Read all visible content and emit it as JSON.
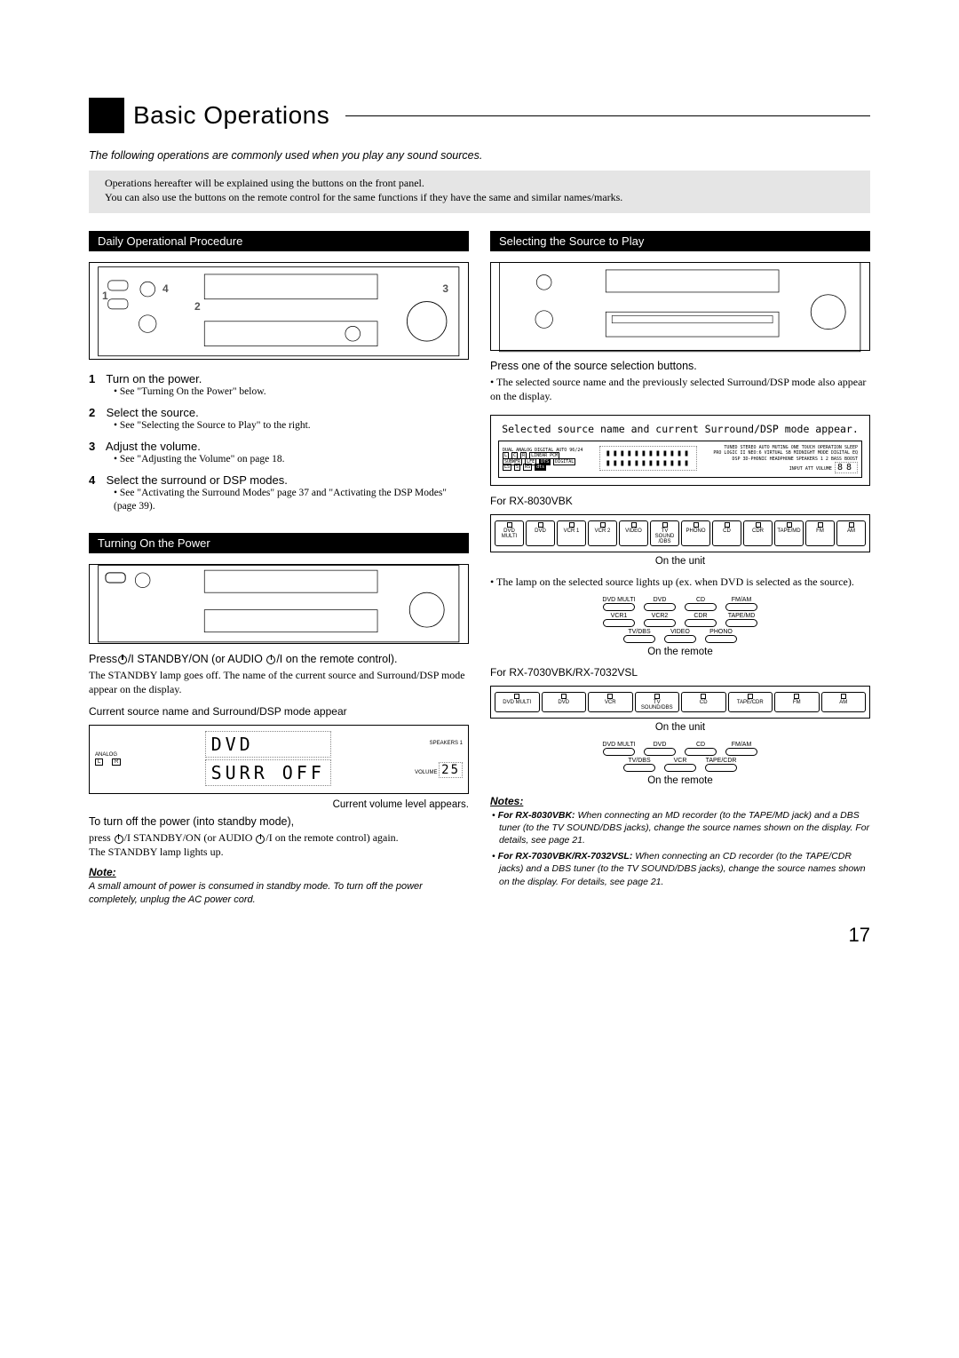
{
  "page_title": "Basic Operations",
  "intro_italic": "The following operations are commonly used when you play any sound sources.",
  "gray_box_line1": "Operations hereafter will be explained using the buttons on the front panel.",
  "gray_box_line2": "You can also use the buttons on the remote control for the same functions if they have the same and similar names/marks.",
  "left": {
    "section1": "Daily Operational Procedure",
    "callouts": {
      "c1": "1",
      "c2": "2",
      "c3": "3",
      "c4": "4"
    },
    "steps": [
      {
        "num": "1",
        "label": "Turn on the power.",
        "sub": "See \"Turning On the Power\" below."
      },
      {
        "num": "2",
        "label": "Select the source.",
        "sub": "See \"Selecting the Source to Play\" to the right."
      },
      {
        "num": "3",
        "label": "Adjust the volume.",
        "sub": "See \"Adjusting the Volume\" on page 18."
      },
      {
        "num": "4",
        "label": "Select the surround or DSP modes.",
        "sub": "See \"Activating the Surround Modes\" page 37 and \"Activating the DSP Modes\" (page 39)."
      }
    ],
    "section2": "Turning On the Power",
    "press_line_a": "Press",
    "press_line_b": " STANDBY/ON (or AUDIO ",
    "press_line_c": " on the remote control).",
    "standby_goes_off": "The STANDBY lamp goes off. The name of the current source and Surround/DSP mode appear on the display.",
    "caption_current": "Current source name and Surround/DSP mode appear",
    "display_lines": {
      "line1": "DVD",
      "line2": "SURR  OFF"
    },
    "display_sides": {
      "left_labels": [
        "ANALOG",
        "L",
        "R"
      ],
      "right_labels": [
        "SPEAKERS 1",
        "VOLUME"
      ],
      "volume_val": "25"
    },
    "caption_volume": "Current volume level appears.",
    "turnoff_line": "To turn off the power (into standby mode),",
    "turnoff_press_a": "press ",
    "turnoff_press_b": " STANDBY/ON (or AUDIO ",
    "turnoff_press_c": " on the remote control) again.",
    "standby_lights": "The STANDBY lamp lights up.",
    "note_head": "Note:",
    "note_body": "A small amount of power is consumed in standby mode. To turn off the power completely, unplug the AC power cord."
  },
  "right": {
    "section1": "Selecting the Source to Play",
    "press_one": "Press one of the source selection buttons.",
    "bullet_selected": "The selected source name and the previously selected Surround/DSP mode also appear on the display.",
    "display_box_caption": "Selected source name and current Surround/DSP mode appear.",
    "display_small_labels_l": [
      "DUAL",
      "ANALOG",
      "DIGITAL",
      "AUTO",
      "96/24",
      "L",
      "C",
      "R",
      "LINEAR PCM",
      "SUBWFR",
      "LFE",
      "DTS",
      "DIGITAL",
      "LS",
      "S",
      "RS",
      "dts"
    ],
    "display_small_labels_r": [
      "TUNED",
      "STEREO",
      "AUTO MUTING",
      "ONE TOUCH OPERATION",
      "SLEEP",
      "PRO LOGIC II",
      "NEO:6",
      "VIRTUAL SB",
      "MIDNIGHT MODE",
      "DIGITAL EQ",
      "DSP",
      "3D-PHONIC",
      "HEADPHONE",
      "SPEAKERS 1 2",
      "BASS BOOST",
      "INPUT ATT",
      "VOLUME"
    ],
    "volume_88": "88",
    "for_8030": "For RX-8030VBK",
    "unit_sources_8030": [
      "DVD MULTI",
      "DVD",
      "VCR 1",
      "VCR 2",
      "VIDEO",
      "TV SOUND /DBS",
      "PHONO",
      "CD",
      "CDR",
      "TAPE/MD",
      "FM",
      "AM"
    ],
    "on_unit": "On  the unit",
    "lamp_bullet": "The lamp on the selected source lights up (ex. when DVD is selected as the source).",
    "remote_8030_rows": [
      [
        "DVD MULTI",
        "DVD",
        "CD",
        "FM/AM"
      ],
      [
        "VCR1",
        "VCR2",
        "CDR",
        "TAPE/MD"
      ],
      [
        "TV/DBS",
        "VIDEO",
        "PHONO"
      ]
    ],
    "on_remote": "On the remote",
    "for_7030": "For RX-7030VBK/RX-7032VSL",
    "unit_sources_7030": [
      "DVD MULTI",
      "DVD",
      "VCR",
      "TV SOUND/DBS",
      "CD",
      "TAPE/CDR",
      "FM",
      "AM"
    ],
    "remote_7030_rows": [
      [
        "DVD MULTI",
        "DVD",
        "CD",
        "FM/AM"
      ],
      [
        "TV/DBS",
        "VCR",
        "TAPE/CDR"
      ]
    ],
    "notes_head": "Notes:",
    "note1_bold": "For RX-8030VBK:",
    "note1_rest": " When connecting an MD recorder (to the TAPE/MD jack) and a DBS tuner (to the TV SOUND/DBS jacks), change the source names shown on the display. For details, see page 21.",
    "note2_bold": "For RX-7030VBK/RX-7032VSL:",
    "note2_rest": " When connecting an CD recorder (to the TAPE/CDR jacks) and a DBS tuner (to the TV SOUND/DBS jacks), change the source names shown on the display. For details, see page 21."
  },
  "page_number": "17",
  "colors": {
    "black": "#000000",
    "gray_box": "#e5e5e5"
  }
}
